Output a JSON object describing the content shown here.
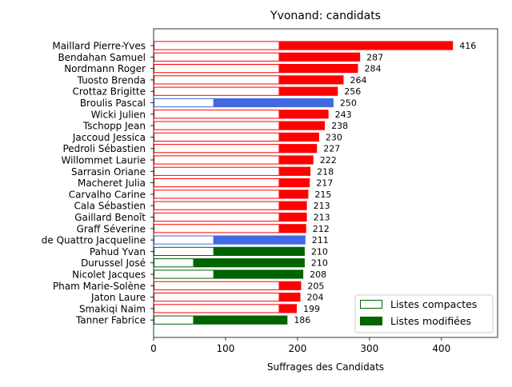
{
  "chart_data": {
    "type": "bar",
    "orientation": "horizontal",
    "title": "Yvonand: candidats",
    "xlabel": "Suffrages des Candidats",
    "xlim": [
      0,
      478
    ],
    "xticks": [
      0,
      100,
      200,
      300,
      400
    ],
    "legend": {
      "placement": "lower-right",
      "entries": [
        {
          "label": "Listes compactes",
          "style": "outline",
          "color": "#006400"
        },
        {
          "label": "Listes modifiées",
          "style": "filled",
          "color": "#006400"
        }
      ]
    },
    "colors": {
      "red_list": "#ff0000",
      "blue_list": "#4169e1",
      "green_list": "#006400"
    },
    "candidates": [
      {
        "name": "Maillard Pierre-Yves",
        "total": 416,
        "compact": 175,
        "color": "#ff0000"
      },
      {
        "name": "Bendahan Samuel",
        "total": 287,
        "compact": 175,
        "color": "#ff0000"
      },
      {
        "name": "Nordmann Roger",
        "total": 284,
        "compact": 175,
        "color": "#ff0000"
      },
      {
        "name": "Tuosto Brenda",
        "total": 264,
        "compact": 175,
        "color": "#ff0000"
      },
      {
        "name": "Crottaz Brigitte",
        "total": 256,
        "compact": 175,
        "color": "#ff0000"
      },
      {
        "name": "Broulis Pascal",
        "total": 250,
        "compact": 84,
        "color": "#4169e1"
      },
      {
        "name": "Wicki Julien",
        "total": 243,
        "compact": 175,
        "color": "#ff0000"
      },
      {
        "name": "Tschopp Jean",
        "total": 238,
        "compact": 175,
        "color": "#ff0000"
      },
      {
        "name": "Jaccoud Jessica",
        "total": 230,
        "compact": 175,
        "color": "#ff0000"
      },
      {
        "name": "Pedroli Sébastien",
        "total": 227,
        "compact": 175,
        "color": "#ff0000"
      },
      {
        "name": "Willommet Laurie",
        "total": 222,
        "compact": 175,
        "color": "#ff0000"
      },
      {
        "name": "Sarrasin Oriane",
        "total": 218,
        "compact": 175,
        "color": "#ff0000"
      },
      {
        "name": "Macheret Julia",
        "total": 217,
        "compact": 175,
        "color": "#ff0000"
      },
      {
        "name": "Carvalho Carine",
        "total": 215,
        "compact": 175,
        "color": "#ff0000"
      },
      {
        "name": "Cala Sébastien",
        "total": 213,
        "compact": 175,
        "color": "#ff0000"
      },
      {
        "name": "Gaillard Benoît",
        "total": 213,
        "compact": 175,
        "color": "#ff0000"
      },
      {
        "name": "Graff Séverine",
        "total": 212,
        "compact": 175,
        "color": "#ff0000"
      },
      {
        "name": "de Quattro Jacqueline",
        "total": 211,
        "compact": 84,
        "color": "#4169e1"
      },
      {
        "name": "Pahud Yvan",
        "total": 210,
        "compact": 84,
        "color": "#006400"
      },
      {
        "name": "Durussel José",
        "total": 210,
        "compact": 56,
        "color": "#006400"
      },
      {
        "name": "Nicolet Jacques",
        "total": 208,
        "compact": 84,
        "color": "#006400"
      },
      {
        "name": "Pham Marie-Solène",
        "total": 205,
        "compact": 175,
        "color": "#ff0000"
      },
      {
        "name": "Jaton Laure",
        "total": 204,
        "compact": 175,
        "color": "#ff0000"
      },
      {
        "name": "Smakiqi Naim",
        "total": 199,
        "compact": 175,
        "color": "#ff0000"
      },
      {
        "name": "Tanner Fabrice",
        "total": 186,
        "compact": 56,
        "color": "#006400"
      }
    ]
  }
}
